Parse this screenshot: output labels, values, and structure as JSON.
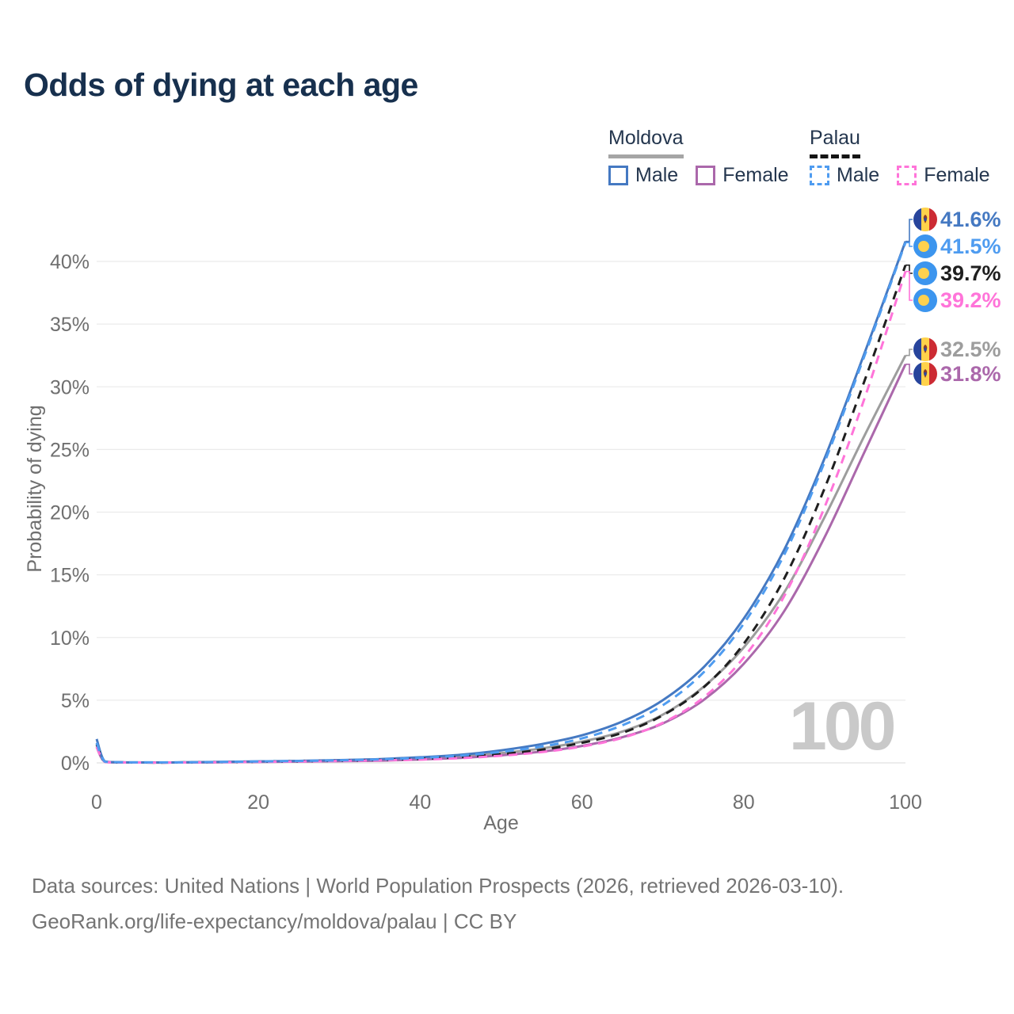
{
  "page": {
    "title": "Odds of dying at each age"
  },
  "legend": {
    "groups": [
      {
        "label": "Moldova",
        "line_style": "solid",
        "underline_color": "#a5a5a5",
        "items": [
          {
            "label": "Male",
            "color": "#4579c2"
          },
          {
            "label": "Female",
            "color": "#ab68ab"
          }
        ]
      },
      {
        "label": "Palau",
        "line_style": "dashed",
        "underline_color": "#141414",
        "items": [
          {
            "label": "Male",
            "color": "#4f9cf0"
          },
          {
            "label": "Female",
            "color": "#ff74d9"
          }
        ]
      }
    ]
  },
  "chart_data": {
    "type": "line",
    "title": "Odds of dying at each age",
    "xlabel": "Age",
    "ylabel": "Probability of dying",
    "watermark": "100",
    "unit": "percent",
    "xlim": [
      0,
      100
    ],
    "ylim": [
      0,
      44
    ],
    "grid": "horizontal",
    "x_ticks": [
      0,
      20,
      40,
      60,
      80,
      100
    ],
    "y_ticks": [
      "0%",
      "5%",
      "10%",
      "15%",
      "20%",
      "25%",
      "30%",
      "35%",
      "40%"
    ],
    "ages": [
      0,
      1,
      3,
      5,
      10,
      15,
      20,
      25,
      30,
      35,
      40,
      45,
      50,
      55,
      60,
      65,
      70,
      75,
      80,
      85,
      90,
      95,
      100
    ],
    "series": [
      {
        "name": "Moldova both sexes",
        "country": "Moldova",
        "sex": "both",
        "color": "#9d9d9d",
        "dash": false,
        "flag": "moldova",
        "end_label": "32.5%",
        "end_value": 32.5,
        "values": [
          1.55,
          0.11,
          0.04,
          0.03,
          0.03,
          0.06,
          0.1,
          0.14,
          0.19,
          0.26,
          0.36,
          0.52,
          0.78,
          1.15,
          1.7,
          2.5,
          3.85,
          6.05,
          9.2,
          13.6,
          19.6,
          26.2,
          32.5
        ]
      },
      {
        "name": "Moldova female",
        "country": "Moldova",
        "sex": "female",
        "color": "#ab68ab",
        "dash": false,
        "flag": "moldova",
        "end_label": "31.8%",
        "end_value": 31.8,
        "values": [
          1.25,
          0.09,
          0.04,
          0.03,
          0.03,
          0.05,
          0.07,
          0.1,
          0.13,
          0.18,
          0.27,
          0.4,
          0.6,
          0.9,
          1.35,
          2.05,
          3.15,
          5.0,
          7.9,
          12.1,
          18.0,
          24.9,
          31.8
        ]
      },
      {
        "name": "Moldova male",
        "country": "Moldova",
        "sex": "male",
        "color": "#4579c2",
        "dash": false,
        "flag": "moldova",
        "end_label": "41.6%",
        "end_value": 41.6,
        "values": [
          1.9,
          0.12,
          0.05,
          0.04,
          0.04,
          0.08,
          0.12,
          0.16,
          0.22,
          0.3,
          0.45,
          0.65,
          1.0,
          1.5,
          2.2,
          3.3,
          5.0,
          7.6,
          11.5,
          17.0,
          24.3,
          32.8,
          41.6
        ]
      },
      {
        "name": "Palau both sexes",
        "country": "Palau",
        "sex": "both",
        "color": "#1f1f1f",
        "dash": true,
        "flag": "palau",
        "end_label": "39.7%",
        "end_value": 39.7,
        "values": [
          1.45,
          0.1,
          0.04,
          0.03,
          0.03,
          0.06,
          0.09,
          0.13,
          0.17,
          0.24,
          0.32,
          0.47,
          0.7,
          1.05,
          1.6,
          2.4,
          3.8,
          6.0,
          9.5,
          14.7,
          21.9,
          30.6,
          39.7
        ]
      },
      {
        "name": "Palau female",
        "country": "Palau",
        "sex": "female",
        "color": "#ff74d9",
        "dash": true,
        "flag": "palau",
        "end_label": "39.2%",
        "end_value": 39.2,
        "values": [
          1.3,
          0.09,
          0.04,
          0.03,
          0.03,
          0.05,
          0.08,
          0.11,
          0.15,
          0.2,
          0.26,
          0.38,
          0.57,
          0.86,
          1.3,
          2.0,
          3.2,
          5.2,
          8.4,
          13.3,
          20.4,
          29.2,
          39.2
        ]
      },
      {
        "name": "Palau male",
        "country": "Palau",
        "sex": "male",
        "color": "#4f9cf0",
        "dash": true,
        "flag": "palau",
        "end_label": "41.5%",
        "end_value": 41.5,
        "values": [
          1.6,
          0.11,
          0.05,
          0.04,
          0.04,
          0.07,
          0.11,
          0.15,
          0.2,
          0.28,
          0.4,
          0.58,
          0.88,
          1.3,
          1.95,
          3.0,
          4.6,
          7.2,
          11.1,
          16.6,
          24.0,
          32.6,
          41.5
        ]
      }
    ]
  },
  "footer": {
    "line1": "Data sources: United Nations | World Population Prospects (2026, retrieved 2026-03-10).",
    "line2": "GeoRank.org/life-expectancy/moldova/palau | CC BY"
  }
}
